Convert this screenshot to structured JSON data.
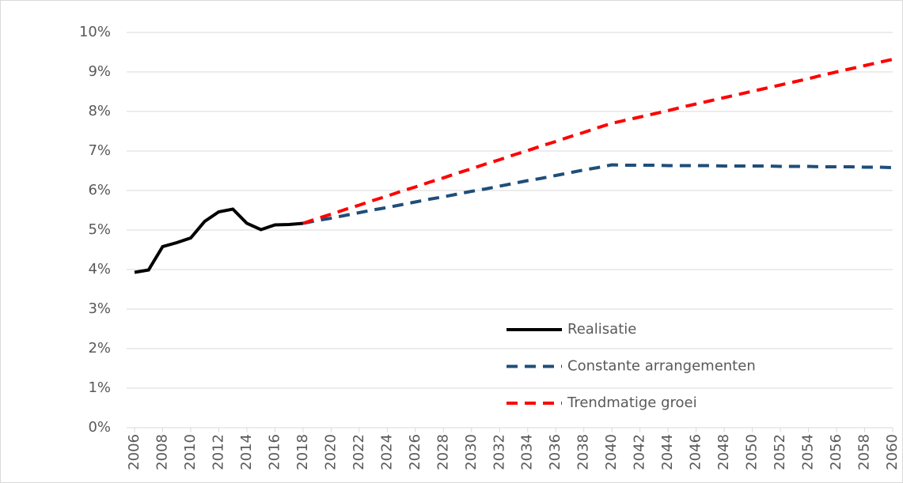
{
  "chart_data": {
    "type": "line",
    "x": [
      2006,
      2007,
      2008,
      2009,
      2010,
      2011,
      2012,
      2013,
      2014,
      2015,
      2016,
      2017,
      2018,
      2019,
      2020,
      2021,
      2022,
      2023,
      2024,
      2025,
      2026,
      2027,
      2028,
      2029,
      2030,
      2031,
      2032,
      2033,
      2034,
      2035,
      2036,
      2037,
      2038,
      2039,
      2040,
      2041,
      2042,
      2043,
      2044,
      2045,
      2046,
      2047,
      2048,
      2049,
      2050,
      2051,
      2052,
      2053,
      2054,
      2055,
      2056,
      2057,
      2058,
      2059,
      2060
    ],
    "series": [
      {
        "name": "Realisatie",
        "color": "#000000",
        "dash": false,
        "values": [
          3.93,
          3.99,
          4.58,
          4.68,
          4.8,
          5.22,
          5.46,
          5.53,
          5.17,
          5.01,
          5.13,
          5.14,
          5.17,
          null,
          null,
          null,
          null,
          null,
          null,
          null,
          null,
          null,
          null,
          null,
          null,
          null,
          null,
          null,
          null,
          null,
          null,
          null,
          null,
          null,
          null,
          null,
          null,
          null,
          null,
          null,
          null,
          null,
          null,
          null,
          null,
          null,
          null,
          null,
          null,
          null,
          null,
          null,
          null,
          null,
          null
        ]
      },
      {
        "name": "Constante arrangementen",
        "color": "#1f4e79",
        "dash": true,
        "values": [
          null,
          null,
          null,
          null,
          null,
          null,
          null,
          null,
          null,
          null,
          null,
          null,
          5.17,
          5.24,
          5.3,
          5.37,
          5.44,
          5.51,
          5.57,
          5.64,
          5.71,
          5.78,
          5.84,
          5.91,
          5.98,
          6.04,
          6.11,
          6.18,
          6.25,
          6.31,
          6.38,
          6.45,
          6.52,
          6.58,
          6.65,
          6.64,
          6.64,
          6.64,
          6.63,
          6.63,
          6.63,
          6.63,
          6.62,
          6.62,
          6.62,
          6.62,
          6.61,
          6.61,
          6.61,
          6.6,
          6.6,
          6.6,
          6.59,
          6.59,
          6.58
        ]
      },
      {
        "name": "Trendmatige groei",
        "color": "#ff0000",
        "dash": true,
        "values": [
          null,
          null,
          null,
          null,
          null,
          null,
          null,
          null,
          null,
          null,
          null,
          null,
          5.17,
          5.29,
          5.4,
          5.52,
          5.63,
          5.75,
          5.86,
          5.98,
          6.09,
          6.21,
          6.32,
          6.44,
          6.55,
          6.67,
          6.78,
          6.9,
          7.01,
          7.13,
          7.24,
          7.36,
          7.47,
          7.59,
          7.7,
          7.78,
          7.86,
          7.94,
          8.02,
          8.11,
          8.19,
          8.27,
          8.35,
          8.43,
          8.51,
          8.59,
          8.67,
          8.75,
          8.83,
          8.92,
          9.0,
          9.08,
          9.16,
          9.24,
          9.32
        ]
      }
    ],
    "xlim": [
      2006,
      2060
    ],
    "xticks": [
      2006,
      2008,
      2010,
      2012,
      2014,
      2016,
      2018,
      2020,
      2022,
      2024,
      2026,
      2028,
      2030,
      2032,
      2034,
      2036,
      2038,
      2040,
      2042,
      2044,
      2046,
      2048,
      2050,
      2052,
      2054,
      2056,
      2058,
      2060
    ],
    "ylim": [
      0,
      10
    ],
    "yticks": [
      {
        "value": 0,
        "label": "0%"
      },
      {
        "value": 1,
        "label": "1%"
      },
      {
        "value": 2,
        "label": "2%"
      },
      {
        "value": 3,
        "label": "3%"
      },
      {
        "value": 4,
        "label": "4%"
      },
      {
        "value": 5,
        "label": "5%"
      },
      {
        "value": 6,
        "label": "6%"
      },
      {
        "value": 7,
        "label": "7%"
      },
      {
        "value": 8,
        "label": "8%"
      },
      {
        "value": 9,
        "label": "9%"
      },
      {
        "value": 10,
        "label": "10%"
      }
    ],
    "grid": true,
    "legend": "lower right"
  }
}
